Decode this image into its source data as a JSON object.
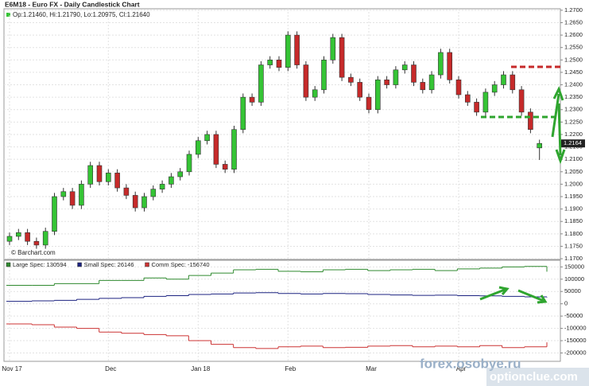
{
  "chart_data": [
    {
      "type": "candlestick",
      "title": "E6M18 - Euro FX - Daily Candlestick Chart",
      "ohlc_text": "Op:1.21460, Hi:1.21790, Lo:1.20975, Cl:1.21640",
      "last_label": "1.2164",
      "credit": "© Barchart.com",
      "watermarks": [
        "forex.osobye.ru",
        "optionclue.com"
      ],
      "up_color": "#35c435",
      "down_color": "#c62a2a",
      "categories": [
        "Nov 17",
        null,
        null,
        null,
        null,
        null,
        null,
        null,
        null,
        null,
        null,
        "Dec",
        null,
        null,
        null,
        null,
        null,
        null,
        null,
        null,
        null,
        "Jan 18",
        null,
        null,
        null,
        null,
        null,
        null,
        null,
        null,
        null,
        "Feb",
        null,
        null,
        null,
        null,
        null,
        null,
        null,
        null,
        "Mar",
        null,
        null,
        null,
        null,
        null,
        null,
        null,
        null,
        null,
        "Apr",
        null,
        null,
        null,
        null,
        null,
        null,
        null,
        null,
        null
      ],
      "open": [
        1.177,
        1.179,
        1.1805,
        1.177,
        1.1755,
        1.181,
        1.195,
        1.197,
        1.1915,
        1.2,
        1.2075,
        1.201,
        1.2045,
        1.1985,
        1.1955,
        1.1905,
        1.195,
        1.198,
        1.2,
        1.203,
        1.205,
        1.212,
        1.2175,
        1.22,
        1.208,
        1.206,
        1.222,
        1.235,
        1.233,
        1.248,
        1.25,
        1.247,
        1.26,
        1.248,
        1.235,
        1.238,
        1.25,
        1.259,
        1.243,
        1.241,
        1.235,
        1.23,
        1.242,
        1.24,
        1.246,
        1.248,
        1.241,
        1.238,
        1.244,
        1.253,
        1.242,
        1.236,
        1.233,
        1.229,
        1.237,
        1.24,
        1.244,
        1.238,
        1.229,
        1.2146
      ],
      "high": [
        1.1805,
        1.182,
        1.182,
        1.1785,
        1.1825,
        1.1965,
        1.1985,
        1.1985,
        1.2015,
        1.209,
        1.209,
        1.206,
        1.206,
        1.2,
        1.197,
        1.1965,
        1.1995,
        1.2015,
        1.2045,
        1.2065,
        1.2135,
        1.219,
        1.2215,
        1.2215,
        1.2095,
        1.2235,
        1.2365,
        1.2365,
        1.2495,
        1.2515,
        1.2515,
        1.2615,
        1.2615,
        1.2495,
        1.2395,
        1.2515,
        1.2605,
        1.2605,
        1.2445,
        1.2425,
        1.2365,
        1.2435,
        1.2435,
        1.2475,
        1.2495,
        1.2495,
        1.2425,
        1.2455,
        1.2545,
        1.2545,
        1.2435,
        1.2375,
        1.2345,
        1.2385,
        1.2415,
        1.2455,
        1.2455,
        1.2395,
        1.2305,
        1.2179
      ],
      "low": [
        1.1755,
        1.1775,
        1.1755,
        1.174,
        1.174,
        1.1795,
        1.1935,
        1.19,
        1.19,
        1.1985,
        1.1995,
        1.1995,
        1.197,
        1.194,
        1.189,
        1.189,
        1.1935,
        1.1965,
        1.1985,
        1.2015,
        1.2035,
        1.2105,
        1.216,
        1.2065,
        1.2045,
        1.2045,
        1.2205,
        1.2315,
        1.2315,
        1.2465,
        1.2455,
        1.2455,
        1.2465,
        1.2335,
        1.2335,
        1.2365,
        1.2485,
        1.2415,
        1.2395,
        1.2335,
        1.2285,
        1.2285,
        1.2385,
        1.2385,
        1.2445,
        1.2395,
        1.2365,
        1.2365,
        1.2425,
        1.2405,
        1.2345,
        1.2315,
        1.2275,
        1.2275,
        1.2355,
        1.2385,
        1.2365,
        1.2275,
        1.2205,
        1.20975
      ],
      "close": [
        1.179,
        1.1805,
        1.177,
        1.1755,
        1.181,
        1.195,
        1.197,
        1.1915,
        1.2,
        1.2075,
        1.201,
        1.2045,
        1.1985,
        1.1955,
        1.1905,
        1.195,
        1.198,
        1.2,
        1.203,
        1.205,
        1.212,
        1.2175,
        1.22,
        1.208,
        1.206,
        1.222,
        1.235,
        1.233,
        1.248,
        1.25,
        1.247,
        1.26,
        1.248,
        1.235,
        1.238,
        1.25,
        1.259,
        1.243,
        1.241,
        1.235,
        1.23,
        1.242,
        1.24,
        1.246,
        1.248,
        1.241,
        1.238,
        1.244,
        1.253,
        1.242,
        1.236,
        1.233,
        1.229,
        1.237,
        1.24,
        1.244,
        1.238,
        1.229,
        1.222,
        1.2164
      ],
      "ylim": [
        1.1697,
        1.2706
      ],
      "yticks": [
        {
          "value": 1.17,
          "label": "1.1700"
        },
        {
          "value": 1.175,
          "label": "1.1750"
        },
        {
          "value": 1.18,
          "label": "1.1800"
        },
        {
          "value": 1.185,
          "label": "1.1850"
        },
        {
          "value": 1.19,
          "label": "1.1900"
        },
        {
          "value": 1.195,
          "label": "1.1950"
        },
        {
          "value": 1.2,
          "label": "1.2000"
        },
        {
          "value": 1.205,
          "label": "1.2050"
        },
        {
          "value": 1.21,
          "label": "1.2100"
        },
        {
          "value": 1.215,
          "label": "1.2150"
        },
        {
          "value": 1.22,
          "label": "1.2200"
        },
        {
          "value": 1.225,
          "label": "1.2250"
        },
        {
          "value": 1.23,
          "label": "1.2300"
        },
        {
          "value": 1.235,
          "label": "1.2350"
        },
        {
          "value": 1.24,
          "label": "1.2400"
        },
        {
          "value": 1.245,
          "label": "1.2450"
        },
        {
          "value": 1.25,
          "label": "1.2500"
        },
        {
          "value": 1.255,
          "label": "1.2550"
        },
        {
          "value": 1.26,
          "label": "1.2600"
        },
        {
          "value": 1.265,
          "label": "1.2650"
        },
        {
          "value": 1.27,
          "label": "1.2700"
        }
      ],
      "grid": true
    },
    {
      "type": "step-line",
      "series": [
        {
          "name": "Large Spec: 130594",
          "color": "#2f8a2f",
          "values": [
            75000,
            75000,
            82000,
            82000,
            95000,
            95000,
            105000,
            100000,
            115000,
            125000,
            138000,
            140000,
            132000,
            130000,
            138000,
            140000,
            135000,
            138000,
            140000,
            135000,
            142000,
            145000,
            150000,
            152000,
            130594
          ]
        },
        {
          "name": "Small Spec: 26146",
          "color": "#1c2380",
          "values": [
            10000,
            12000,
            14000,
            18000,
            22000,
            25000,
            30000,
            33000,
            38000,
            40000,
            44000,
            45000,
            42000,
            40000,
            42000,
            41000,
            38000,
            36000,
            34000,
            35000,
            33000,
            32000,
            30000,
            28000,
            26146
          ]
        },
        {
          "name": "Comm Spec: -156740",
          "color": "#cc3333",
          "values": [
            -82000,
            -85000,
            -95000,
            -100000,
            -115000,
            -120000,
            -125000,
            -130000,
            -150000,
            -165000,
            -178000,
            -182000,
            -175000,
            -172000,
            -178000,
            -177000,
            -172000,
            -170000,
            -175000,
            -172000,
            -175000,
            -170000,
            -178000,
            -175000,
            -156740
          ]
        }
      ],
      "ylim": [
        -234000,
        177000
      ],
      "yticks": [
        150000,
        100000,
        50000,
        0,
        -50000,
        -100000,
        -150000,
        -200000
      ],
      "grid": true
    }
  ]
}
